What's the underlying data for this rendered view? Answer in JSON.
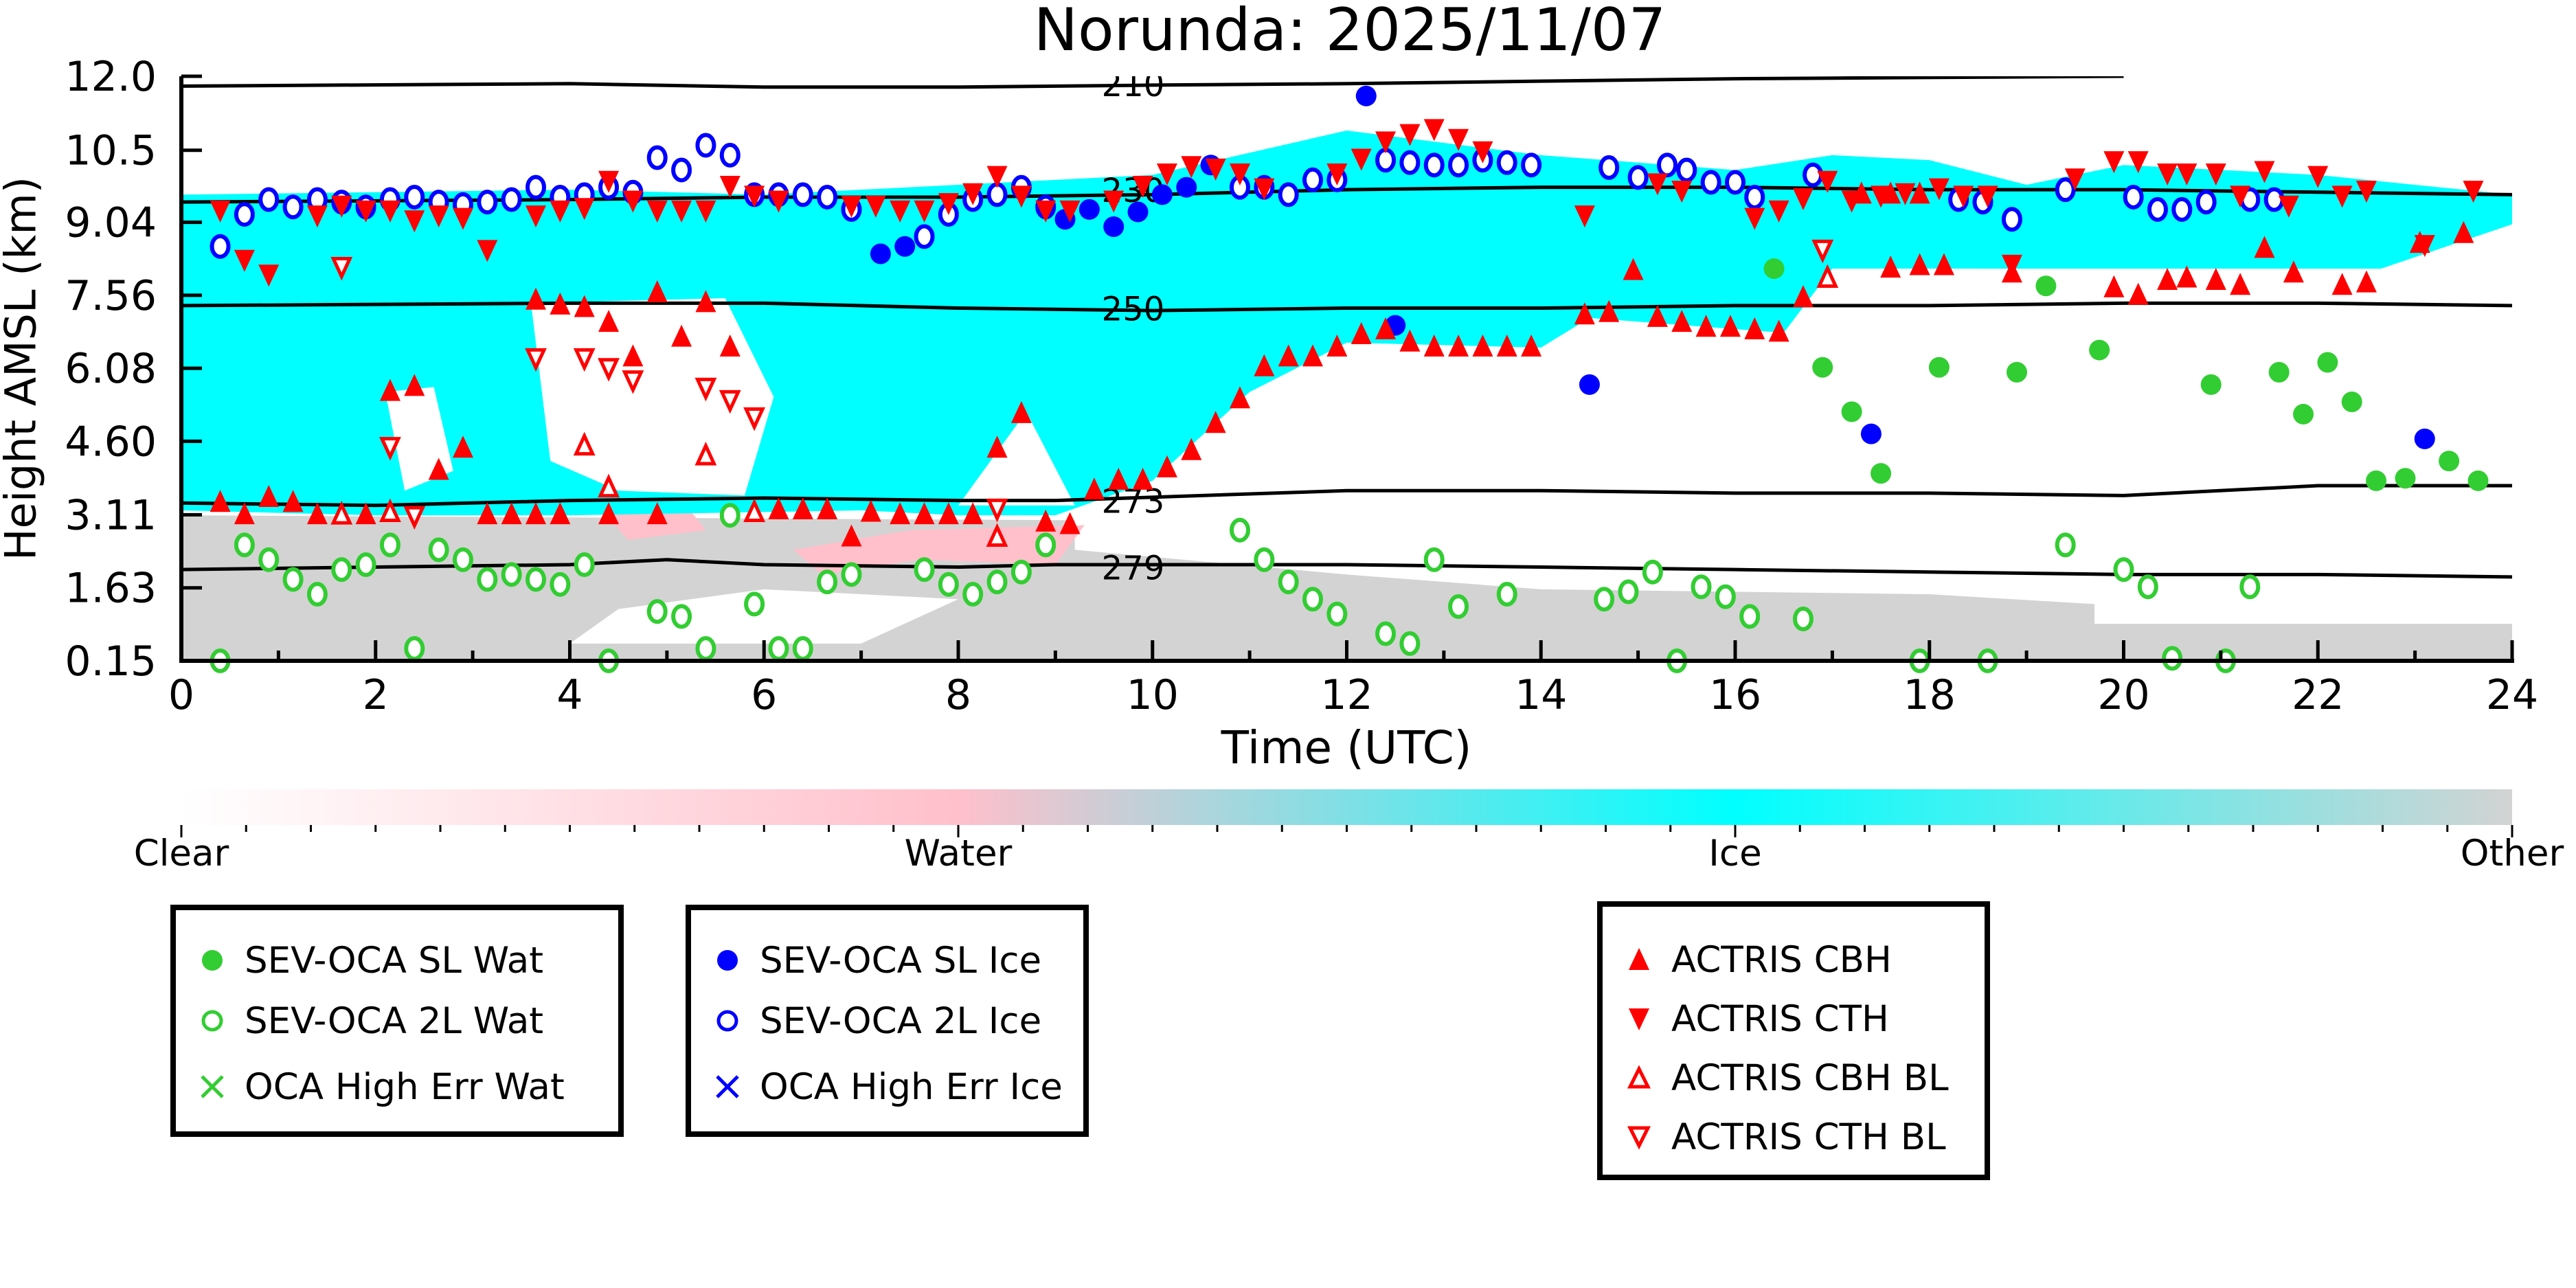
{
  "chart_data": {
    "type": "scatter",
    "title": "Norunda: 2025/11/07",
    "xlabel": "Time (UTC)",
    "ylabel": "Height AMSL (km)",
    "xlim": [
      0,
      24
    ],
    "ylim": [
      0.15,
      12.0
    ],
    "xticks": [
      "0",
      "2",
      "4",
      "6",
      "8",
      "10",
      "12",
      "14",
      "16",
      "18",
      "20",
      "22",
      "24"
    ],
    "yticks": [
      "0.15",
      "1.63",
      "3.11",
      "4.60",
      "6.08",
      "7.56",
      "9.04",
      "10.5",
      "12.0"
    ],
    "colorbar": {
      "labels": [
        "Clear",
        "Water",
        "Ice",
        "Other"
      ],
      "colors": [
        "#ffffff",
        "#ffc0cb",
        "#00ffff",
        "#d3d3d3"
      ]
    },
    "isotherms": [
      {
        "label": "210",
        "x": [
          0,
          4,
          6,
          8,
          10,
          12,
          14,
          16,
          20
        ],
        "y": [
          11.8,
          11.85,
          11.78,
          11.78,
          11.82,
          11.85,
          11.9,
          11.95,
          12.0
        ]
      },
      {
        "label": "230",
        "x": [
          0,
          4,
          6,
          8,
          10,
          12,
          14,
          16,
          18,
          20,
          22,
          24
        ],
        "y": [
          9.45,
          9.5,
          9.55,
          9.55,
          9.6,
          9.7,
          9.75,
          9.75,
          9.7,
          9.7,
          9.65,
          9.6
        ]
      },
      {
        "label": "250",
        "x": [
          0,
          4,
          6,
          8,
          10,
          12,
          14,
          16,
          18,
          20,
          22,
          24
        ],
        "y": [
          7.35,
          7.4,
          7.4,
          7.3,
          7.25,
          7.3,
          7.3,
          7.35,
          7.35,
          7.4,
          7.4,
          7.35
        ]
      },
      {
        "label": "273",
        "x": [
          0,
          2,
          4,
          6,
          8,
          9,
          12,
          14,
          16,
          18,
          20,
          22,
          24
        ],
        "y": [
          3.35,
          3.3,
          3.4,
          3.45,
          3.4,
          3.4,
          3.6,
          3.6,
          3.55,
          3.55,
          3.5,
          3.7,
          3.7
        ]
      },
      {
        "label": "279",
        "x": [
          0,
          2,
          4,
          5,
          6,
          8,
          9,
          12,
          14,
          16,
          18,
          20,
          22,
          24
        ],
        "y": [
          2.0,
          2.05,
          2.1,
          2.2,
          2.1,
          2.05,
          2.1,
          2.1,
          2.05,
          2.0,
          1.95,
          1.9,
          1.9,
          1.85
        ]
      }
    ],
    "series": [
      {
        "name": "SEV-OCA SL Wat",
        "color": "#32cd32",
        "marker": "filled-circle",
        "x": [
          16.4,
          16.9,
          17.2,
          17.5,
          18.1,
          18.9,
          19.2,
          19.75,
          20.9,
          21.6,
          21.85,
          22.1,
          22.35,
          22.6,
          22.9,
          23.35,
          23.65
        ],
        "y": [
          8.1,
          6.1,
          5.2,
          3.95,
          6.1,
          6.0,
          7.75,
          6.45,
          5.75,
          6.0,
          5.15,
          6.2,
          5.4,
          3.8,
          3.85,
          4.2,
          3.8
        ]
      },
      {
        "name": "SEV-OCA 2L Wat",
        "color": "#32cd32",
        "marker": "open-circle",
        "x": [
          0.4,
          0.65,
          0.9,
          1.15,
          1.4,
          1.65,
          1.9,
          2.15,
          2.4,
          2.65,
          2.9,
          3.15,
          3.4,
          3.65,
          3.9,
          4.15,
          4.4,
          4.9,
          5.15,
          5.4,
          5.65,
          5.9,
          6.15,
          6.4,
          6.65,
          6.9,
          7.65,
          7.9,
          8.15,
          8.4,
          8.65,
          8.9,
          10.9,
          11.15,
          11.4,
          11.65,
          11.9,
          12.4,
          12.65,
          12.9,
          13.15,
          13.65,
          14.65,
          14.9,
          15.15,
          15.4,
          15.65,
          15.9,
          16.15,
          16.7,
          17.9,
          18.6,
          19.4,
          20.0,
          20.25,
          20.5,
          21.05,
          21.3
        ],
        "y": [
          0.15,
          2.5,
          2.2,
          1.8,
          1.5,
          2.0,
          2.1,
          2.5,
          0.4,
          2.4,
          2.2,
          1.8,
          1.9,
          1.8,
          1.7,
          2.1,
          0.15,
          1.15,
          1.05,
          0.4,
          3.1,
          1.3,
          0.4,
          0.4,
          1.75,
          1.9,
          2.0,
          1.7,
          1.5,
          1.75,
          1.95,
          2.5,
          2.8,
          2.2,
          1.75,
          1.4,
          1.1,
          0.7,
          0.5,
          2.2,
          1.25,
          1.5,
          1.4,
          1.55,
          1.95,
          0.15,
          1.65,
          1.45,
          1.05,
          1.0,
          0.15,
          0.15,
          2.5,
          2.0,
          1.65,
          0.2,
          0.15,
          1.65
        ]
      },
      {
        "name": "OCA High Err Wat",
        "color": "#32cd32",
        "marker": "x",
        "x": [],
        "y": []
      },
      {
        "name": "SEV-OCA SL Ice",
        "color": "#0000ff",
        "marker": "filled-circle",
        "x": [
          7.2,
          7.45,
          9.1,
          9.35,
          9.6,
          9.85,
          10.1,
          10.35,
          10.6,
          12.2,
          12.5,
          14.5,
          17.4,
          23.1
        ],
        "y": [
          8.4,
          8.55,
          9.1,
          9.3,
          8.95,
          9.25,
          9.6,
          9.75,
          10.2,
          11.6,
          6.95,
          5.75,
          4.75,
          4.65
        ]
      },
      {
        "name": "SEV-OCA 2L Ice",
        "color": "#0000ff",
        "marker": "open-circle",
        "x": [
          0.4,
          0.65,
          0.9,
          1.15,
          1.4,
          1.65,
          1.9,
          2.15,
          2.4,
          2.65,
          2.9,
          3.15,
          3.4,
          3.65,
          3.9,
          4.15,
          4.4,
          4.65,
          4.9,
          5.15,
          5.4,
          5.65,
          5.9,
          6.15,
          6.4,
          6.65,
          6.9,
          7.65,
          7.9,
          8.15,
          8.4,
          8.65,
          8.9,
          10.9,
          11.15,
          11.4,
          11.65,
          11.9,
          12.4,
          12.65,
          12.9,
          13.15,
          13.4,
          13.65,
          13.9,
          14.7,
          15.0,
          15.3,
          15.5,
          15.75,
          16.0,
          16.2,
          16.8,
          18.3,
          18.55,
          18.85,
          19.4,
          20.1,
          20.35,
          20.6,
          20.85,
          21.3,
          21.55
        ],
        "y": [
          8.55,
          9.2,
          9.5,
          9.35,
          9.5,
          9.45,
          9.35,
          9.5,
          9.55,
          9.45,
          9.4,
          9.45,
          9.5,
          9.75,
          9.55,
          9.6,
          9.75,
          9.65,
          10.35,
          10.1,
          10.6,
          10.4,
          9.6,
          9.6,
          9.6,
          9.55,
          9.3,
          8.75,
          9.2,
          9.5,
          9.6,
          9.75,
          9.35,
          9.75,
          9.75,
          9.6,
          9.9,
          9.9,
          10.3,
          10.25,
          10.2,
          10.2,
          10.3,
          10.25,
          10.2,
          10.15,
          9.95,
          10.2,
          10.1,
          9.85,
          9.85,
          9.55,
          10.0,
          9.5,
          9.45,
          9.1,
          9.7,
          9.55,
          9.3,
          9.3,
          9.45,
          9.5,
          9.5
        ]
      },
      {
        "name": "OCA High Err Ice",
        "color": "#0000ff",
        "marker": "x",
        "x": [],
        "y": []
      },
      {
        "name": "ACTRIS CBH",
        "color": "#ff0000",
        "marker": "filled-up",
        "x": [
          0.4,
          0.65,
          0.9,
          1.15,
          1.4,
          1.9,
          2.15,
          2.4,
          2.65,
          2.9,
          3.15,
          3.4,
          3.65,
          3.65,
          3.9,
          3.9,
          4.15,
          4.4,
          4.4,
          4.65,
          4.9,
          4.9,
          5.15,
          5.4,
          5.65,
          5.9,
          6.15,
          6.4,
          6.65,
          6.9,
          7.1,
          7.4,
          7.65,
          7.9,
          8.15,
          8.4,
          8.65,
          8.9,
          9.15,
          9.4,
          9.65,
          9.9,
          10.15,
          10.4,
          10.65,
          10.9,
          11.15,
          11.4,
          11.65,
          11.9,
          12.15,
          12.4,
          12.65,
          12.9,
          13.15,
          13.4,
          13.65,
          13.9,
          14.45,
          14.7,
          14.95,
          15.2,
          15.45,
          15.7,
          15.95,
          16.2,
          16.45,
          16.7,
          17.3,
          17.6,
          17.9,
          17.6,
          17.9,
          18.15,
          18.85,
          19.9,
          20.15,
          20.45,
          20.65,
          20.95,
          21.2,
          21.45,
          21.75,
          22.25,
          22.5,
          23.05,
          23.5
        ],
        "y": [
          3.35,
          3.1,
          3.45,
          3.35,
          3.1,
          3.1,
          5.6,
          5.7,
          4.0,
          4.45,
          3.1,
          3.1,
          7.45,
          3.1,
          7.35,
          3.1,
          7.3,
          7.0,
          3.1,
          6.3,
          7.6,
          3.1,
          6.7,
          7.4,
          6.5,
          3.15,
          3.2,
          3.2,
          3.2,
          2.65,
          3.15,
          3.1,
          3.1,
          3.1,
          3.1,
          4.45,
          5.15,
          2.95,
          2.9,
          3.6,
          3.8,
          3.8,
          4.05,
          4.4,
          4.95,
          5.45,
          6.1,
          6.3,
          6.3,
          6.5,
          6.75,
          6.85,
          6.6,
          6.5,
          6.5,
          6.5,
          6.5,
          6.5,
          7.15,
          7.2,
          8.05,
          7.1,
          7.0,
          6.9,
          6.9,
          6.85,
          6.8,
          7.5,
          9.6,
          9.6,
          9.6,
          8.1,
          8.15,
          8.15,
          8.0,
          7.7,
          7.55,
          7.85,
          7.9,
          7.85,
          7.75,
          8.5,
          8.0,
          7.75,
          7.8,
          8.6,
          8.8
        ]
      },
      {
        "name": "ACTRIS CTH",
        "color": "#ff0000",
        "marker": "filled-down",
        "x": [
          0.4,
          0.65,
          0.9,
          1.4,
          1.65,
          1.9,
          2.15,
          2.4,
          2.65,
          2.9,
          3.15,
          3.65,
          3.9,
          4.15,
          4.4,
          4.65,
          4.9,
          5.15,
          5.4,
          5.65,
          5.9,
          6.15,
          6.9,
          7.15,
          7.4,
          7.65,
          7.9,
          8.15,
          8.4,
          8.65,
          8.9,
          9.15,
          9.6,
          9.9,
          10.15,
          10.4,
          10.65,
          10.9,
          11.15,
          11.9,
          12.15,
          12.4,
          12.65,
          12.9,
          13.15,
          13.4,
          14.45,
          15.2,
          15.45,
          16.2,
          16.45,
          16.7,
          16.95,
          17.2,
          17.5,
          17.75,
          18.1,
          18.35,
          18.6,
          18.85,
          19.5,
          19.9,
          20.15,
          20.45,
          20.65,
          20.95,
          21.2,
          21.45,
          21.7,
          22.0,
          22.25,
          22.5,
          23.1,
          23.6
        ],
        "y": [
          9.3,
          8.3,
          8.0,
          9.2,
          9.4,
          9.3,
          9.3,
          9.1,
          9.2,
          9.15,
          8.5,
          9.2,
          9.3,
          9.35,
          9.9,
          9.5,
          9.3,
          9.3,
          9.3,
          9.8,
          9.6,
          9.5,
          9.4,
          9.4,
          9.3,
          9.3,
          9.45,
          9.65,
          10.0,
          9.6,
          9.3,
          9.3,
          9.5,
          9.8,
          10.05,
          10.2,
          10.15,
          10.05,
          9.75,
          10.05,
          10.35,
          10.7,
          10.85,
          10.95,
          10.75,
          10.5,
          9.2,
          9.85,
          9.7,
          9.15,
          9.3,
          9.55,
          9.9,
          9.5,
          9.6,
          9.65,
          9.75,
          9.6,
          9.6,
          8.2,
          9.95,
          10.3,
          10.3,
          10.05,
          10.05,
          10.05,
          9.6,
          10.1,
          9.4,
          10.0,
          9.6,
          9.7,
          8.6,
          9.7
        ]
      },
      {
        "name": "ACTRIS CBH BL",
        "color": "#ff0000",
        "marker": "open-up",
        "x": [
          1.65,
          2.15,
          4.15,
          4.4,
          5.4,
          5.9,
          8.4,
          16.95
        ],
        "y": [
          3.1,
          3.15,
          4.5,
          3.65,
          4.3,
          3.15,
          2.65,
          7.9
        ]
      },
      {
        "name": "ACTRIS CTH BL",
        "color": "#ff0000",
        "marker": "open-down",
        "x": [
          1.65,
          2.15,
          2.4,
          3.65,
          4.15,
          4.4,
          4.65,
          5.4,
          5.65,
          5.9,
          8.4,
          16.9
        ],
        "y": [
          8.15,
          4.5,
          3.1,
          6.3,
          6.3,
          6.1,
          5.85,
          5.7,
          5.45,
          5.1,
          3.25,
          8.5
        ]
      }
    ],
    "legend": [
      {
        "group": "left",
        "items": [
          "SEV-OCA SL Wat",
          "SEV-OCA 2L Wat",
          "OCA High Err Wat"
        ]
      },
      {
        "group": "middle",
        "items": [
          "SEV-OCA SL Ice",
          "SEV-OCA 2L Ice",
          "OCA High Err Ice"
        ]
      },
      {
        "group": "right",
        "items": [
          "ACTRIS CBH",
          "ACTRIS CTH",
          "ACTRIS CBH BL",
          "ACTRIS CTH BL"
        ]
      }
    ]
  }
}
